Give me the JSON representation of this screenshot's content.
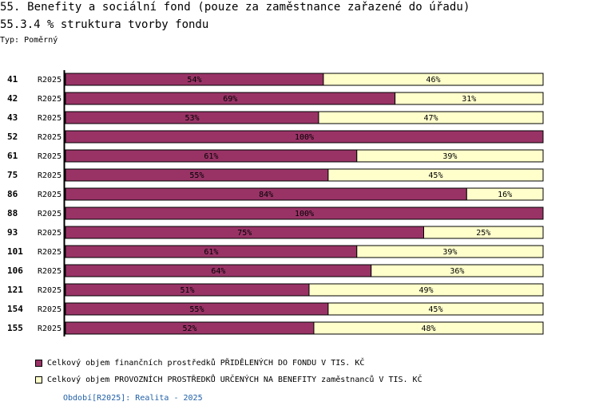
{
  "header": {
    "title": "55. Benefity a sociální fond (pouze za zaměstnance zařazené do úřadu)",
    "subtitle": "55.3.4 % struktura tvorby fondu",
    "type_label": "Typ: Poměrný"
  },
  "colors": {
    "series1": "#993366",
    "series2": "#ffffcc",
    "border": "#000000",
    "period_text": "#1f5fa8"
  },
  "chart_data": {
    "type": "bar",
    "orientation": "horizontal",
    "stacked": "percent",
    "title": "55.3.4 % struktura tvorby fondu",
    "categories": [
      "41",
      "42",
      "43",
      "52",
      "61",
      "75",
      "86",
      "88",
      "93",
      "101",
      "106",
      "121",
      "154",
      "155"
    ],
    "period_labels": [
      "R2025",
      "R2025",
      "R2025",
      "R2025",
      "R2025",
      "R2025",
      "R2025",
      "R2025",
      "R2025",
      "R2025",
      "R2025",
      "R2025",
      "R2025",
      "R2025"
    ],
    "xlim": [
      0,
      100
    ],
    "series": [
      {
        "name": "Celkový objem finančních prostředků PŘIDĚLENÝCH DO FONDU V TIS. KČ",
        "values": [
          54,
          69,
          53,
          100,
          61,
          55,
          84,
          100,
          75,
          61,
          64,
          51,
          55,
          52
        ],
        "labels": [
          "54%",
          "69%",
          "53%",
          "100%",
          "61%",
          "55%",
          "84%",
          "100%",
          "75%",
          "61%",
          "64%",
          "51%",
          "55%",
          "52%"
        ]
      },
      {
        "name": "Celkový objem PROVOZNÍCH PROSTŘEDKŮ URČENÝCH NA BENEFITY zaměstnanců V TIS. KČ",
        "values": [
          46,
          31,
          47,
          0,
          39,
          45,
          16,
          0,
          25,
          39,
          36,
          49,
          45,
          48
        ],
        "labels": [
          "46%",
          "31%",
          "47%",
          "",
          "39%",
          "45%",
          "16%",
          "",
          "25%",
          "39%",
          "36%",
          "49%",
          "45%",
          "48%"
        ]
      }
    ],
    "legend_position": "bottom-left"
  },
  "footer": {
    "period_note": "Období[R2025]: Realita - 2025"
  }
}
